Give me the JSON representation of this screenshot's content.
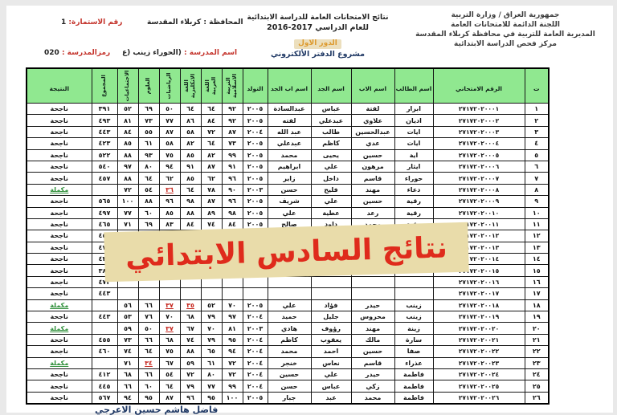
{
  "page": {
    "watermark": "نتائج السادس الابتدائي",
    "signature": "فاضل هاشم حسين الاعرجي"
  },
  "header": {
    "gov_lines": [
      "جمهورية العراق / وزارة التربية",
      "اللجنة الدائمة للامتحانات العامة",
      "المديرية العامة للتربية في محافظة كربلاء المقدسة",
      "مركز فحص الدراسة الابتدائية"
    ],
    "center": {
      "title": "نتائج الامتحانات العامة للدراسة الابتدائية",
      "year_line": "للعام الدراسي 2017-2016",
      "round": "الدور الاول",
      "project": "مشروع الدفتر الألكتروني"
    },
    "meta": {
      "form_label": "رقم الاستمارة:",
      "form_value": "1",
      "governorate_label": "المحافظة :",
      "governorate_value": "كربلاء المقدسة",
      "school_code_label": "رمزالمدرسة :",
      "school_code_value": "020",
      "school_name_label": "اسم المدرسة :",
      "school_name_value": "(الحوراء زينب (ع"
    }
  },
  "colors": {
    "header_green": "#90e890",
    "fail_red": "#c62820",
    "makeup_green": "#2f8f3a",
    "watermark_red": "#df2b1c",
    "watermark_bg": "#e9dcaa",
    "label_red": "#c4342c",
    "navy": "#1f3864",
    "round_orange": "#dd9a2e"
  },
  "table": {
    "columns": [
      {
        "key": "no",
        "label": "ت",
        "vertical": false
      },
      {
        "key": "exam",
        "label": "الرقم الامتحاني",
        "vertical": false
      },
      {
        "key": "name",
        "label": "اسم الطالب",
        "vertical": false
      },
      {
        "key": "father",
        "label": "اسم الاب",
        "vertical": false
      },
      {
        "key": "grandfather",
        "label": "اسم الجد",
        "vertical": false
      },
      {
        "key": "great_grandfather",
        "label": "اسم اب الجد",
        "vertical": false
      },
      {
        "key": "birth",
        "label": "التولد",
        "vertical": false
      },
      {
        "key": "islamic",
        "label": "التربية الاسلامية",
        "vertical": true
      },
      {
        "key": "arabic",
        "label": "اللغة العربية",
        "vertical": true
      },
      {
        "key": "english",
        "label": "اللغة الانكليزية",
        "vertical": true
      },
      {
        "key": "math",
        "label": "الرياضيات",
        "vertical": true
      },
      {
        "key": "science",
        "label": "العلوم",
        "vertical": true
      },
      {
        "key": "social",
        "label": "الاجتماعيات",
        "vertical": true
      },
      {
        "key": "total",
        "label": "المجموع",
        "vertical": true
      },
      {
        "key": "result",
        "label": "النتيجة",
        "vertical": false
      }
    ],
    "rows": [
      {
        "no": "١",
        "exam": "٢٧١٧٢٠٢٠٠٠١",
        "name": "ابرار",
        "father": "لفتة",
        "grandfather": "عباس",
        "great_grandfather": "عبدالسادة",
        "birth": "٢٠٠٥",
        "islamic": "٩٢",
        "arabic": "٦٤",
        "english": "٦٤",
        "math": "٥٠",
        "science": "٦٩",
        "social": "٥٢",
        "total": "٣٩١",
        "result": "ناجحة",
        "status": "pass",
        "fails": []
      },
      {
        "no": "٢",
        "exam": "٢٧١٧٢٠٢٠٠٠٢",
        "name": "اديان",
        "father": "علاوي",
        "grandfather": "عبدعلي",
        "great_grandfather": "لفته",
        "birth": "٢٠٠٥",
        "islamic": "٩٢",
        "arabic": "٨٤",
        "english": "٨٦",
        "math": "٧٧",
        "science": "٧٣",
        "social": "٨١",
        "total": "٤٩٣",
        "result": "ناجحة",
        "status": "pass",
        "fails": []
      },
      {
        "no": "٣",
        "exam": "٢٧١٧٢٠٢٠٠٠٣",
        "name": "ايات",
        "father": "عبدالحسين",
        "grandfather": "طالب",
        "great_grandfather": "عبد الله",
        "birth": "٢٠٠٤",
        "islamic": "٨٧",
        "arabic": "٧٢",
        "english": "٥٨",
        "math": "٨٧",
        "science": "٥٥",
        "social": "٨٤",
        "total": "٤٤٣",
        "result": "ناجحة",
        "status": "pass",
        "fails": []
      },
      {
        "no": "٤",
        "exam": "٢٧١٧٢٠٢٠٠٠٤",
        "name": "ايات",
        "father": "عدي",
        "grandfather": "كاظم",
        "great_grandfather": "عبدعلي",
        "birth": "٢٠٠٥",
        "islamic": "٧٣",
        "arabic": "٦٤",
        "english": "٨٢",
        "math": "٥٨",
        "science": "٦١",
        "social": "٨٥",
        "total": "٤٢٣",
        "result": "ناجحة",
        "status": "pass",
        "fails": []
      },
      {
        "no": "٥",
        "exam": "٢٧١٧٢٠٢٠٠٠٥",
        "name": "اية",
        "father": "حسين",
        "grandfather": "يحيى",
        "great_grandfather": "محمد",
        "birth": "٢٠٠٥",
        "islamic": "٩٩",
        "arabic": "٨٢",
        "english": "٨٥",
        "math": "٧٥",
        "science": "٩٣",
        "social": "٨٨",
        "total": "٥٢٢",
        "result": "ناجحة",
        "status": "pass",
        "fails": []
      },
      {
        "no": "٦",
        "exam": "٢٧١٧٢٠٢٠٠٠٦",
        "name": "ايثار",
        "father": "مرهون",
        "grandfather": "علي",
        "great_grandfather": "ابراهيم",
        "birth": "٢٠٠٥",
        "islamic": "٩١",
        "arabic": "٨٧",
        "english": "٩١",
        "math": "٩٤",
        "science": "٨٠",
        "social": "٩٧",
        "total": "٥٤٠",
        "result": "ناجحة",
        "status": "pass",
        "fails": []
      },
      {
        "no": "٧",
        "exam": "٢٧١٧٢٠٢٠٠٠٧",
        "name": "حوراء",
        "father": "قاسم",
        "grandfather": "داخل",
        "great_grandfather": "زاير",
        "birth": "٢٠٠٥",
        "islamic": "٩٦",
        "arabic": "٦٢",
        "english": "٨٥",
        "math": "٦٢",
        "science": "٦٤",
        "social": "٨٨",
        "total": "٤٥٧",
        "result": "ناجحة",
        "status": "pass",
        "fails": []
      },
      {
        "no": "٨",
        "exam": "٢٧١٧٢٠٢٠٠٠٨",
        "name": "دعاء",
        "father": "مهند",
        "grandfather": "فليح",
        "great_grandfather": "حسن",
        "birth": "٢٠٠٣",
        "islamic": "٩٠",
        "arabic": "٧٨",
        "english": "٦٤",
        "math": "٣٦",
        "science": "٥٤",
        "social": "٧٢",
        "total": "",
        "result": "مكملة",
        "status": "makeup",
        "fails": [
          "math"
        ]
      },
      {
        "no": "٩",
        "exam": "٢٧١٧٢٠٢٠٠٠٩",
        "name": "رقية",
        "father": "حسين",
        "grandfather": "علي",
        "great_grandfather": "شريف",
        "birth": "٢٠٠٥",
        "islamic": "٩٦",
        "arabic": "٨٧",
        "english": "٩٨",
        "math": "٩٦",
        "science": "٨٨",
        "social": "١٠٠",
        "total": "٥٦٥",
        "result": "ناجحة",
        "status": "pass",
        "fails": []
      },
      {
        "no": "١٠",
        "exam": "٢٧١٧٢٠٢٠٠١٠",
        "name": "رقية",
        "father": "رعد",
        "grandfather": "عطية",
        "great_grandfather": "علي",
        "birth": "٢٠٠٥",
        "islamic": "٩٨",
        "arabic": "٨٩",
        "english": "٨٨",
        "math": "٨٥",
        "science": "٦٠",
        "social": "٧٧",
        "total": "٤٩٧",
        "result": "ناجحة",
        "status": "pass",
        "fails": []
      },
      {
        "no": "١١",
        "exam": "٢٧١٧٢٠٢٠٠١١",
        "name": "رقية",
        "father": "محمد",
        "grandfather": "داود",
        "great_grandfather": "صالح",
        "birth": "٢٠٠٥",
        "islamic": "٨٤",
        "arabic": "٧٤",
        "english": "٨٤",
        "math": "٨٣",
        "science": "٦٩",
        "social": "٧١",
        "total": "٤٦٥",
        "result": "ناجحة",
        "status": "pass",
        "fails": []
      },
      {
        "no": "١٢",
        "exam": "٢٧١٧٢٠٢٠٠١٢",
        "name": "رقية",
        "father": "مسلم",
        "grandfather": "كريم",
        "great_grandfather": "حسن",
        "birth": "٢٠٠٥",
        "islamic": "٩٩",
        "arabic": "٧٣",
        "english": "٧٦",
        "math": "٥٧",
        "science": "٧٠",
        "social": "٧٦",
        "total": "٤٥١",
        "result": "ناجحة",
        "status": "pass",
        "fails": []
      },
      {
        "no": "١٣",
        "exam": "٢٧١٧٢٠٢٠٠١٣",
        "name": "",
        "father": "",
        "grandfather": "",
        "great_grandfather": "",
        "birth": "",
        "islamic": "",
        "arabic": "",
        "english": "",
        "math": "",
        "science": "",
        "social": "",
        "total": "٤٧٥",
        "result": "ناجحة",
        "status": "pass",
        "fails": []
      },
      {
        "no": "١٤",
        "exam": "٢٧١٧٢٠٢٠٠١٤",
        "name": "",
        "father": "",
        "grandfather": "",
        "great_grandfather": "",
        "birth": "",
        "islamic": "",
        "arabic": "",
        "english": "",
        "math": "",
        "science": "",
        "social": "",
        "total": "٤٣٥",
        "result": "ناجحة",
        "status": "pass",
        "fails": []
      },
      {
        "no": "١٥",
        "exam": "٢٧١٧٢٠٢٠٠١٥",
        "name": "",
        "father": "",
        "grandfather": "",
        "great_grandfather": "",
        "birth": "",
        "islamic": "",
        "arabic": "",
        "english": "",
        "math": "",
        "science": "",
        "social": "",
        "total": "٣٨٤",
        "result": "ناجحة",
        "status": "pass",
        "fails": []
      },
      {
        "no": "١٦",
        "exam": "٢٧١٧٢٠٢٠٠١٦",
        "name": "",
        "father": "",
        "grandfather": "",
        "great_grandfather": "",
        "birth": "",
        "islamic": "",
        "arabic": "",
        "english": "",
        "math": "",
        "science": "",
        "social": "",
        "total": "٤٧٢",
        "result": "ناجحة",
        "status": "pass",
        "fails": []
      },
      {
        "no": "١٧",
        "exam": "٢٧١٧٢٠٢٠٠١٧",
        "name": "",
        "father": "",
        "grandfather": "",
        "great_grandfather": "",
        "birth": "",
        "islamic": "",
        "arabic": "",
        "english": "",
        "math": "",
        "science": "",
        "social": "",
        "total": "٤٤٣",
        "result": "ناجحة",
        "status": "pass",
        "fails": []
      },
      {
        "no": "١٨",
        "exam": "٢٧١٧٢٠٢٠٠١٨",
        "name": "زينب",
        "father": "حيدر",
        "grandfather": "فؤاد",
        "great_grandfather": "علي",
        "birth": "٢٠٠٥",
        "islamic": "٧٠",
        "arabic": "٥٢",
        "english": "٣٥",
        "math": "٣٧",
        "science": "٦٦",
        "social": "٥٦",
        "total": "",
        "result": "مكملة",
        "status": "makeup",
        "fails": [
          "english",
          "math"
        ]
      },
      {
        "no": "١٩",
        "exam": "٢٧١٧٢٠٢٠٠١٩",
        "name": "زينب",
        "father": "محروس",
        "grandfather": "جليل",
        "great_grandfather": "حميد",
        "birth": "٢٠٠٤",
        "islamic": "٩٧",
        "arabic": "٧٩",
        "english": "٦٨",
        "math": "٧٠",
        "science": "٧٦",
        "social": "٥٣",
        "total": "٤٤٣",
        "result": "ناجحة",
        "status": "pass",
        "fails": []
      },
      {
        "no": "٢٠",
        "exam": "٢٧١٧٢٠٢٠٠٢٠",
        "name": "زينة",
        "father": "مهند",
        "grandfather": "رؤوف",
        "great_grandfather": "هادي",
        "birth": "٢٠٠٣",
        "islamic": "٨١",
        "arabic": "٧٠",
        "english": "٦٧",
        "math": "٣٧",
        "science": "٥٠",
        "social": "٥٩",
        "total": "",
        "result": "مكملة",
        "status": "makeup",
        "fails": [
          "math"
        ]
      },
      {
        "no": "٢١",
        "exam": "٢٧١٧٢٠٢٠٠٢١",
        "name": "سارة",
        "father": "مالك",
        "grandfather": "يعقوب",
        "great_grandfather": "كاظم",
        "birth": "٢٠٠٤",
        "islamic": "٩٥",
        "arabic": "٧٩",
        "english": "٧٤",
        "math": "٦٨",
        "science": "٦٦",
        "social": "٧٣",
        "total": "٤٥٥",
        "result": "ناجحة",
        "status": "pass",
        "fails": []
      },
      {
        "no": "٢٢",
        "exam": "٢٧١٧٢٠٢٠٠٢٢",
        "name": "صفا",
        "father": "حسين",
        "grandfather": "احمد",
        "great_grandfather": "محمد",
        "birth": "٢٠٠٤",
        "islamic": "٩٤",
        "arabic": "٦٥",
        "english": "٨٨",
        "math": "٧٥",
        "science": "٦٤",
        "social": "٧٤",
        "total": "٤٦٠",
        "result": "ناجحة",
        "status": "pass",
        "fails": []
      },
      {
        "no": "٢٣",
        "exam": "٢٧١٧٢٠٢٠٠٢٣",
        "name": "عذراء",
        "father": "قاسم",
        "grandfather": "نعاس",
        "great_grandfather": "خنجر",
        "birth": "٢٠٠٤",
        "islamic": "٧٢",
        "arabic": "٦١",
        "english": "٥٩",
        "math": "٦٧",
        "science": "٣٤",
        "social": "٧١",
        "total": "",
        "result": "مكملة",
        "status": "makeup",
        "fails": [
          "science"
        ]
      },
      {
        "no": "٢٤",
        "exam": "٢٧١٧٢٠٢٠٠٢٤",
        "name": "فاطمة",
        "father": "حيدر",
        "grandfather": "علي",
        "great_grandfather": "حسين",
        "birth": "٢٠٠٤",
        "islamic": "٧٢",
        "arabic": "٨٠",
        "english": "٧٢",
        "math": "٥٤",
        "science": "٦٦",
        "social": "٦٨",
        "total": "٤١٢",
        "result": "ناجحة",
        "status": "pass",
        "fails": []
      },
      {
        "no": "٢٥",
        "exam": "٢٧١٧٢٠٢٠٠٢٥",
        "name": "فاطمة",
        "father": "زكي",
        "grandfather": "عباس",
        "great_grandfather": "حسن",
        "birth": "٢٠٠٤",
        "islamic": "٩٩",
        "arabic": "٧٧",
        "english": "٧٩",
        "math": "٦٤",
        "science": "٦٠",
        "social": "٦٦",
        "total": "٤٤٥",
        "result": "ناجحة",
        "status": "pass",
        "fails": []
      },
      {
        "no": "٢٦",
        "exam": "٢٧١٧٢٠٢٠٠٢٦",
        "name": "فاطمة",
        "father": "محمد",
        "grandfather": "عبد",
        "great_grandfather": "جبار",
        "birth": "٢٠٠٥",
        "islamic": "١٠٠",
        "arabic": "٩٥",
        "english": "٩٦",
        "math": "٨٧",
        "science": "٩٥",
        "social": "٩٤",
        "total": "٥٦٧",
        "result": "ناجحة",
        "status": "pass",
        "fails": []
      }
    ]
  }
}
